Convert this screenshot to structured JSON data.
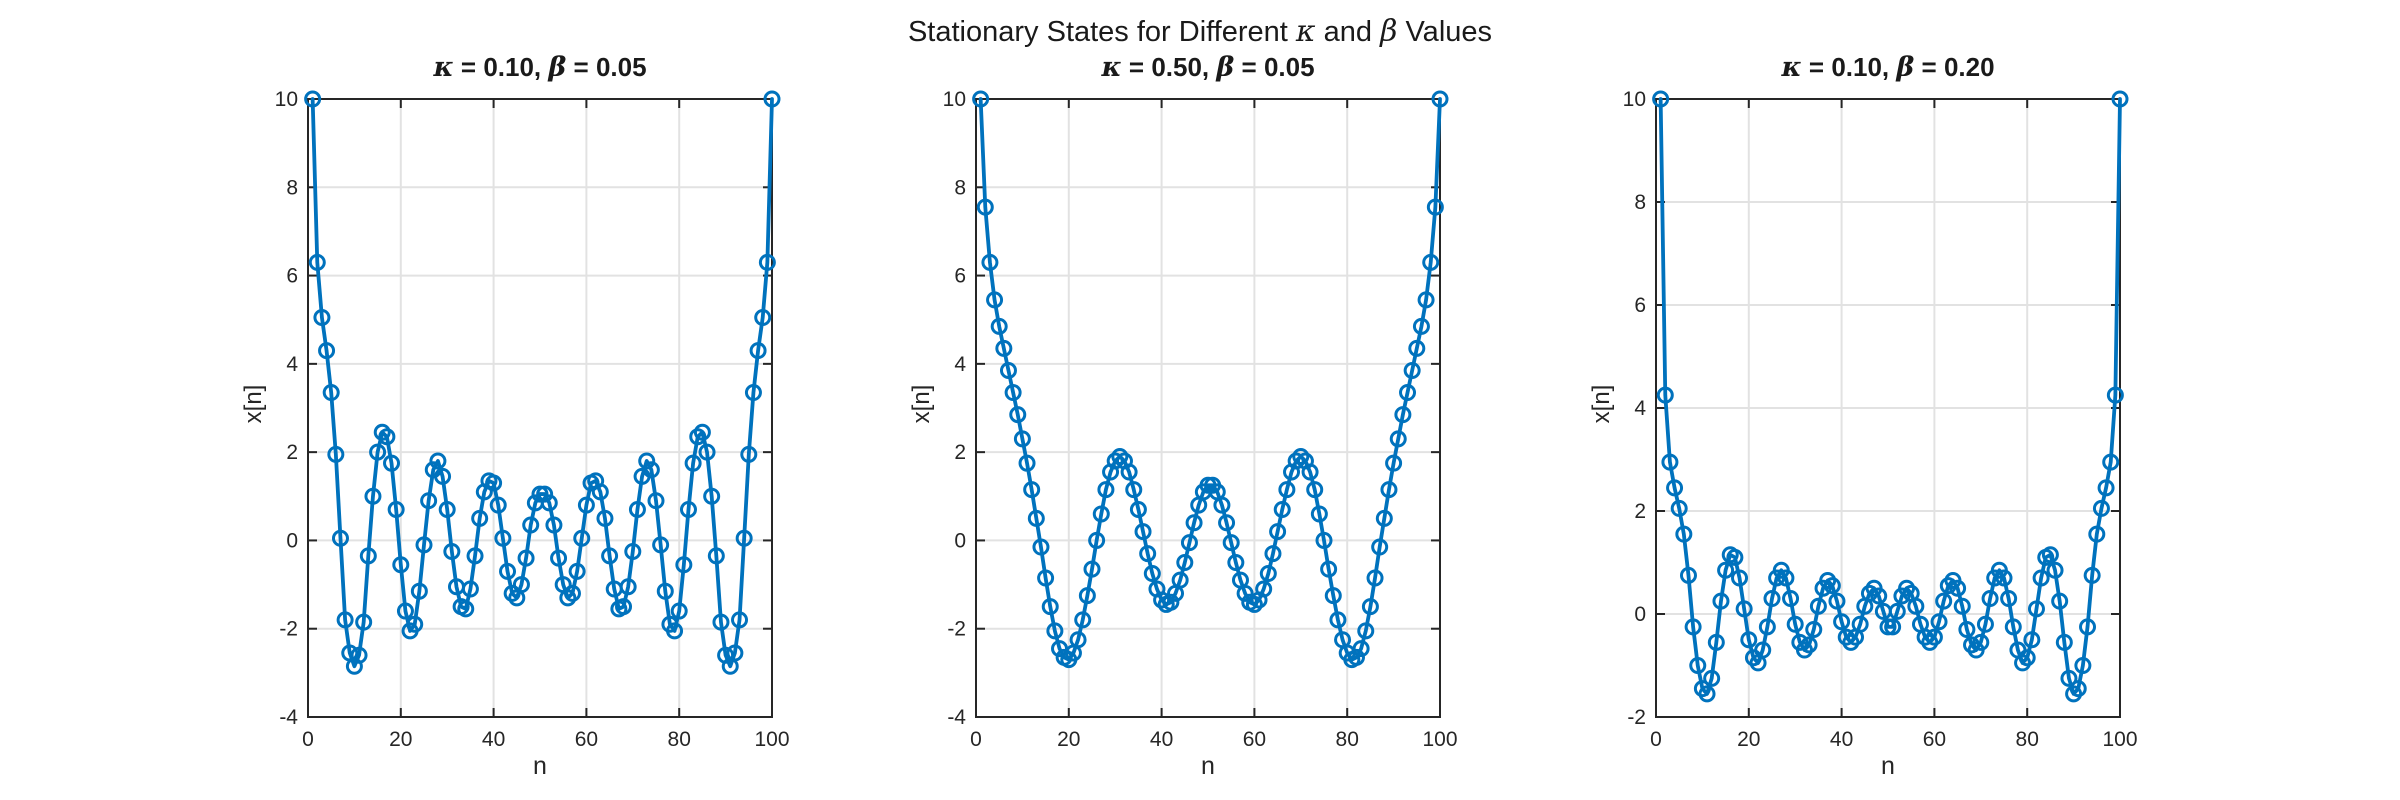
{
  "figure": {
    "title_segments": {
      "pre": "Stationary States for Different ",
      "kappa": "κ",
      "mid": " and ",
      "beta": "β",
      "post": " Values"
    },
    "background_color": "#ffffff",
    "text_color": "#1a1a1a"
  },
  "chart_data": [
    {
      "type": "line",
      "title_segments": {
        "kappa": "κ",
        "kappa_eq": " = 0.10, ",
        "beta": "β",
        "beta_eq": " = 0.05"
      },
      "xlabel": "n",
      "ylabel": "x[n]",
      "xlim": [
        0,
        100
      ],
      "ylim": [
        -4,
        10
      ],
      "xticks": [
        0,
        20,
        40,
        60,
        80,
        100
      ],
      "yticks": [
        -4,
        -2,
        0,
        2,
        4,
        6,
        8,
        10
      ],
      "grid": true,
      "legend": "none",
      "marker": "o",
      "line_color": "#0072BD",
      "grid_color": "#e2e2e2",
      "axis_color": "#262626",
      "x_start": 1,
      "x_step": 1,
      "y": [
        10,
        6.3,
        5.05,
        4.3,
        3.35,
        1.95,
        0.05,
        -1.8,
        -2.55,
        -2.85,
        -2.6,
        -1.85,
        -0.35,
        1.0,
        2.0,
        2.45,
        2.35,
        1.75,
        0.7,
        -0.55,
        -1.6,
        -2.05,
        -1.9,
        -1.15,
        -0.1,
        0.9,
        1.6,
        1.8,
        1.45,
        0.7,
        -0.25,
        -1.05,
        -1.5,
        -1.55,
        -1.1,
        -0.35,
        0.5,
        1.1,
        1.35,
        1.3,
        0.8,
        0.05,
        -0.7,
        -1.2,
        -1.3,
        -1.0,
        -0.4,
        0.35,
        0.85,
        1.05,
        1.05,
        0.85,
        0.35,
        -0.4,
        -1.0,
        -1.3,
        -1.2,
        -0.7,
        0.05,
        0.8,
        1.3,
        1.35,
        1.1,
        0.5,
        -0.35,
        -1.1,
        -1.55,
        -1.5,
        -1.05,
        -0.25,
        0.7,
        1.45,
        1.8,
        1.6,
        0.9,
        -0.1,
        -1.15,
        -1.9,
        -2.05,
        -1.6,
        -0.55,
        0.7,
        1.75,
        2.35,
        2.45,
        2.0,
        1.0,
        -0.35,
        -1.85,
        -2.6,
        -2.85,
        -2.55,
        -1.8,
        0.05,
        1.95,
        3.35,
        4.3,
        5.05,
        6.3,
        10
      ]
    },
    {
      "type": "line",
      "title_segments": {
        "kappa": "κ",
        "kappa_eq": " = 0.50, ",
        "beta": "β",
        "beta_eq": " = 0.05"
      },
      "xlabel": "n",
      "ylabel": "x[n]",
      "xlim": [
        0,
        100
      ],
      "ylim": [
        -4,
        10
      ],
      "xticks": [
        0,
        20,
        40,
        60,
        80,
        100
      ],
      "yticks": [
        -4,
        -2,
        0,
        2,
        4,
        6,
        8,
        10
      ],
      "grid": true,
      "legend": "none",
      "marker": "o",
      "line_color": "#0072BD",
      "grid_color": "#e2e2e2",
      "axis_color": "#262626",
      "x_start": 1,
      "x_step": 1,
      "y": [
        10,
        7.55,
        6.3,
        5.45,
        4.85,
        4.35,
        3.85,
        3.35,
        2.85,
        2.3,
        1.75,
        1.15,
        0.5,
        -0.15,
        -0.85,
        -1.5,
        -2.05,
        -2.45,
        -2.65,
        -2.7,
        -2.55,
        -2.25,
        -1.8,
        -1.25,
        -0.65,
        0.0,
        0.6,
        1.15,
        1.55,
        1.8,
        1.9,
        1.8,
        1.55,
        1.15,
        0.7,
        0.2,
        -0.3,
        -0.75,
        -1.1,
        -1.35,
        -1.45,
        -1.4,
        -1.2,
        -0.9,
        -0.5,
        -0.05,
        0.4,
        0.8,
        1.1,
        1.25,
        1.25,
        1.1,
        0.8,
        0.4,
        -0.05,
        -0.5,
        -0.9,
        -1.2,
        -1.4,
        -1.45,
        -1.35,
        -1.1,
        -0.75,
        -0.3,
        0.2,
        0.7,
        1.15,
        1.55,
        1.8,
        1.9,
        1.8,
        1.55,
        1.15,
        0.6,
        0.0,
        -0.65,
        -1.25,
        -1.8,
        -2.25,
        -2.55,
        -2.7,
        -2.65,
        -2.45,
        -2.05,
        -1.5,
        -0.85,
        -0.15,
        0.5,
        1.15,
        1.75,
        2.3,
        2.85,
        3.35,
        3.85,
        4.35,
        4.85,
        5.45,
        6.3,
        7.55,
        10
      ]
    },
    {
      "type": "line",
      "title_segments": {
        "kappa": "κ",
        "kappa_eq": " = 0.10, ",
        "beta": "β",
        "beta_eq": " = 0.20"
      },
      "xlabel": "n",
      "ylabel": "x[n]",
      "xlim": [
        0,
        100
      ],
      "ylim": [
        -2,
        10
      ],
      "xticks": [
        0,
        20,
        40,
        60,
        80,
        100
      ],
      "yticks": [
        -2,
        0,
        2,
        4,
        6,
        8,
        10
      ],
      "grid": true,
      "legend": "none",
      "marker": "o",
      "line_color": "#0072BD",
      "grid_color": "#e2e2e2",
      "axis_color": "#262626",
      "x_start": 1,
      "x_step": 1,
      "y": [
        10,
        4.25,
        2.95,
        2.45,
        2.05,
        1.55,
        0.75,
        -0.25,
        -1.0,
        -1.45,
        -1.55,
        -1.25,
        -0.55,
        0.25,
        0.85,
        1.15,
        1.1,
        0.7,
        0.1,
        -0.5,
        -0.85,
        -0.95,
        -0.7,
        -0.25,
        0.3,
        0.7,
        0.85,
        0.7,
        0.3,
        -0.2,
        -0.55,
        -0.7,
        -0.6,
        -0.3,
        0.15,
        0.5,
        0.65,
        0.55,
        0.25,
        -0.15,
        -0.45,
        -0.55,
        -0.45,
        -0.2,
        0.15,
        0.4,
        0.5,
        0.35,
        0.05,
        -0.25,
        -0.25,
        0.05,
        0.35,
        0.5,
        0.4,
        0.15,
        -0.2,
        -0.45,
        -0.55,
        -0.45,
        -0.15,
        0.25,
        0.55,
        0.65,
        0.5,
        0.15,
        -0.3,
        -0.6,
        -0.7,
        -0.55,
        -0.2,
        0.3,
        0.7,
        0.85,
        0.7,
        0.3,
        -0.25,
        -0.7,
        -0.95,
        -0.85,
        -0.5,
        0.1,
        0.7,
        1.1,
        1.15,
        0.85,
        0.25,
        -0.55,
        -1.25,
        -1.55,
        -1.45,
        -1.0,
        -0.25,
        0.75,
        1.55,
        2.05,
        2.45,
        2.95,
        4.25,
        10
      ]
    }
  ]
}
